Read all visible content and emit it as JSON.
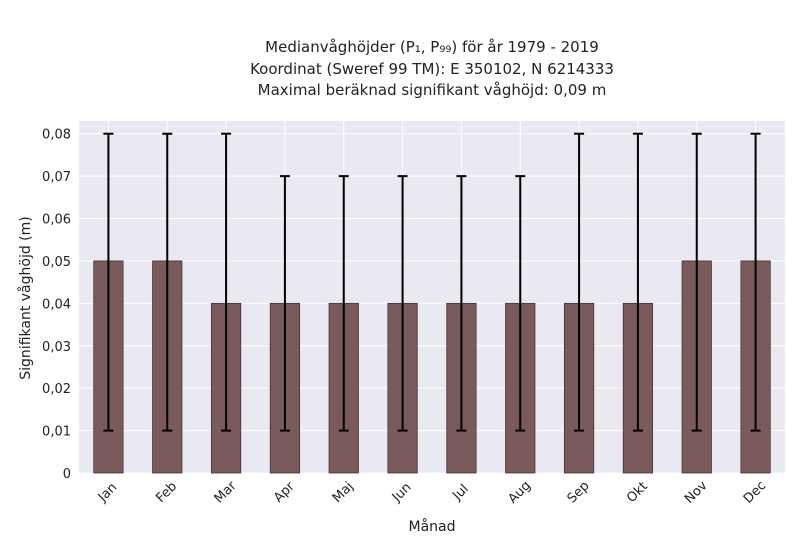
{
  "chart_data": {
    "type": "bar",
    "title_lines": [
      "Medianvåghöjder (P₁, P₉₉) för år 1979 - 2019",
      "Koordinat (Sweref 99 TM): E 350102, N 6214333",
      "Maximal beräknad signifikant våghöjd: 0,09 m"
    ],
    "xlabel": "Månad",
    "ylabel": "Signifikant våghöjd (m)",
    "categories": [
      "Jan",
      "Feb",
      "Mar",
      "Apr",
      "Maj",
      "Jun",
      "Jul",
      "Aug",
      "Sep",
      "Okt",
      "Nov",
      "Dec"
    ],
    "values": [
      0.05,
      0.05,
      0.04,
      0.04,
      0.04,
      0.04,
      0.04,
      0.04,
      0.04,
      0.04,
      0.05,
      0.05
    ],
    "p1": [
      0.01,
      0.01,
      0.01,
      0.01,
      0.01,
      0.01,
      0.01,
      0.01,
      0.01,
      0.01,
      0.01,
      0.01
    ],
    "p99": [
      0.08,
      0.08,
      0.08,
      0.07,
      0.07,
      0.07,
      0.07,
      0.07,
      0.08,
      0.08,
      0.08,
      0.08
    ],
    "ylim": [
      0,
      0.083
    ],
    "yticks": [
      0,
      0.01,
      0.02,
      0.03,
      0.04,
      0.05,
      0.06,
      0.07,
      0.08
    ],
    "ytick_labels": [
      "0",
      "0,01",
      "0,02",
      "0,03",
      "0,04",
      "0,05",
      "0,06",
      "0,07",
      "0,08"
    ],
    "grid": true,
    "colors": {
      "bar": "#7a5a5a",
      "bar_edge": "#4a3434",
      "errorbar": "#000000",
      "plot_background": "#e9e9f1",
      "grid": "#ffffff"
    }
  }
}
